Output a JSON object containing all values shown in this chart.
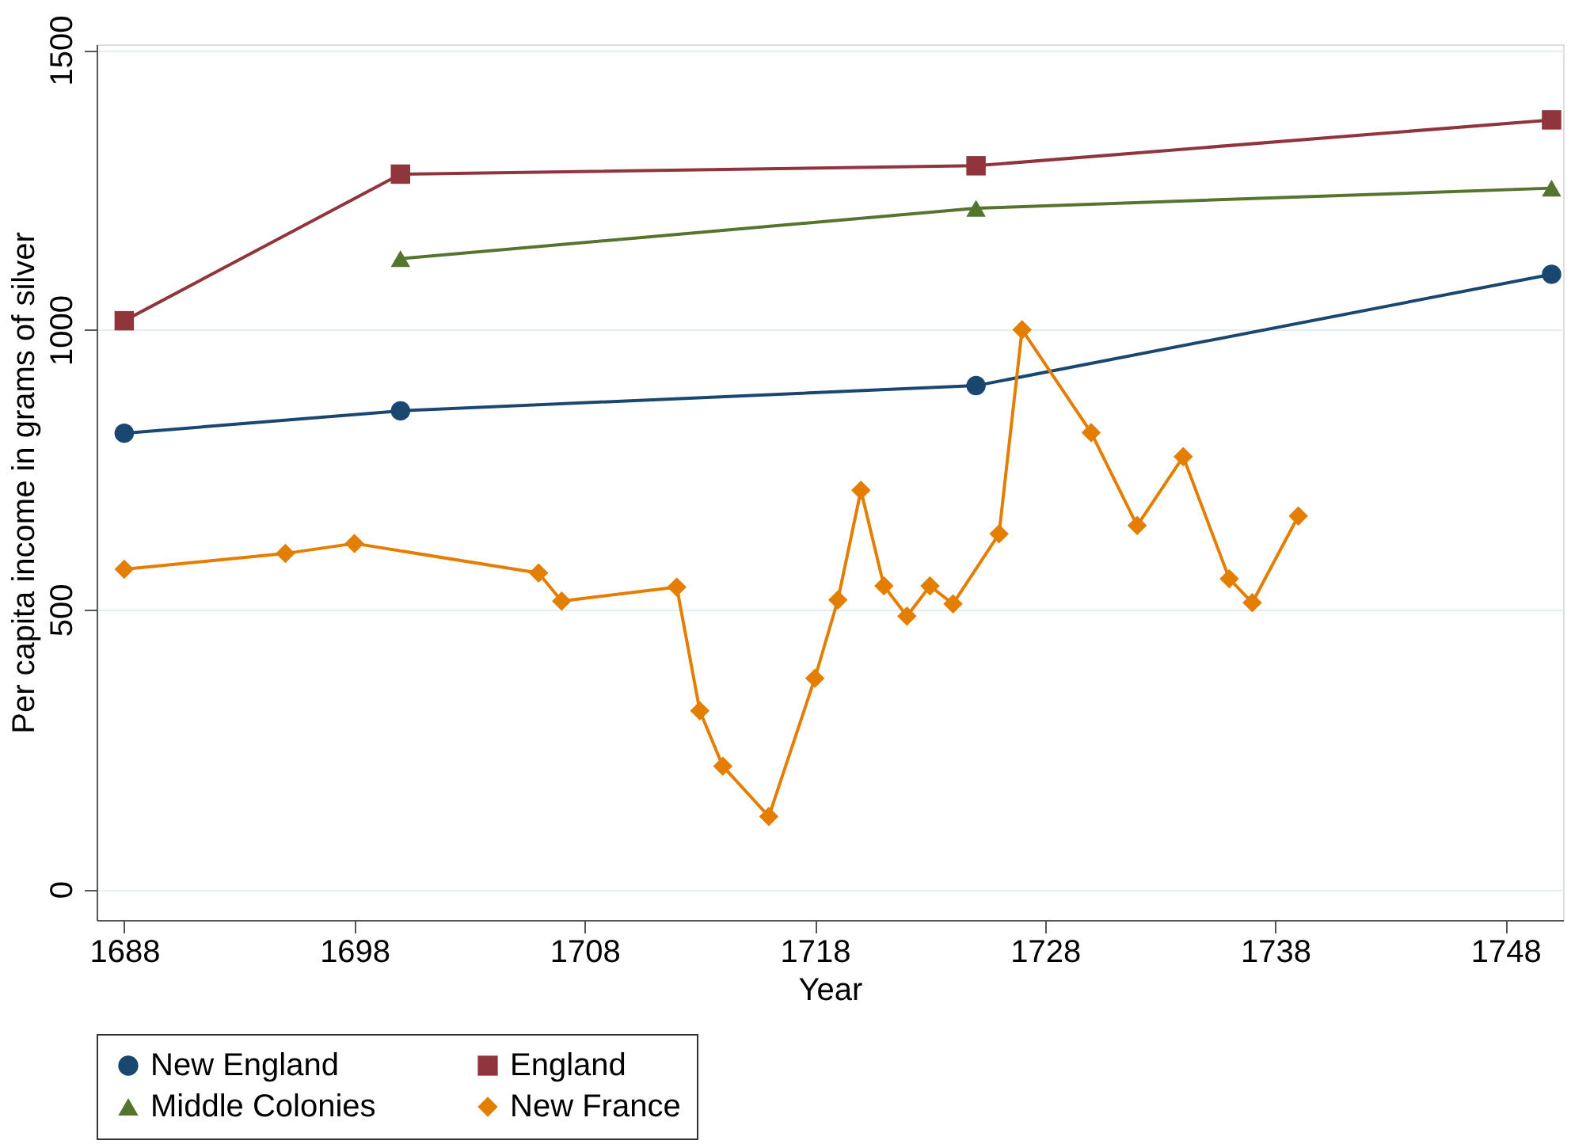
{
  "chart_data": {
    "type": "line",
    "xlabel": "Year",
    "ylabel": "Per capita income in grams of silver",
    "xlim": [
      1686.8,
      1750.5
    ],
    "xticks": [
      1688,
      1698,
      1708,
      1718,
      1728,
      1738,
      1748
    ],
    "ylim": [
      -55,
      1510
    ],
    "yticks": [
      0,
      500,
      1000,
      1500
    ],
    "grid": "y",
    "legend": "bottom",
    "line_style": "solid",
    "series": [
      {
        "name": "New England",
        "color": "#1a476f",
        "marker": "circle",
        "x": [
          1688,
          1700,
          1725,
          1750
        ],
        "values": [
          815,
          855,
          900,
          1099
        ]
      },
      {
        "name": "England",
        "color": "#90353b",
        "marker": "square",
        "x": [
          1688,
          1700,
          1725,
          1750
        ],
        "values": [
          1016,
          1278,
          1293,
          1375
        ]
      },
      {
        "name": "Middle Colonies",
        "color": "#55752f",
        "marker": "triangle",
        "x": [
          1700,
          1725,
          1750
        ],
        "values": [
          1127,
          1217,
          1253
        ]
      },
      {
        "name": "New France",
        "color": "#e37e00",
        "marker": "diamond",
        "x": [
          1688,
          1695,
          1698,
          1706,
          1707,
          1712,
          1713,
          1714,
          1716,
          1718,
          1719,
          1720,
          1721,
          1722,
          1723,
          1724,
          1726,
          1727,
          1730,
          1732,
          1734,
          1736,
          1737,
          1739
        ],
        "values": [
          572,
          600,
          618,
          565,
          515,
          540,
          319,
          220,
          130,
          377,
          517,
          713,
          542,
          488,
          542,
          510,
          635,
          1000,
          816,
          650,
          773,
          555,
          512,
          667
        ]
      }
    ]
  }
}
